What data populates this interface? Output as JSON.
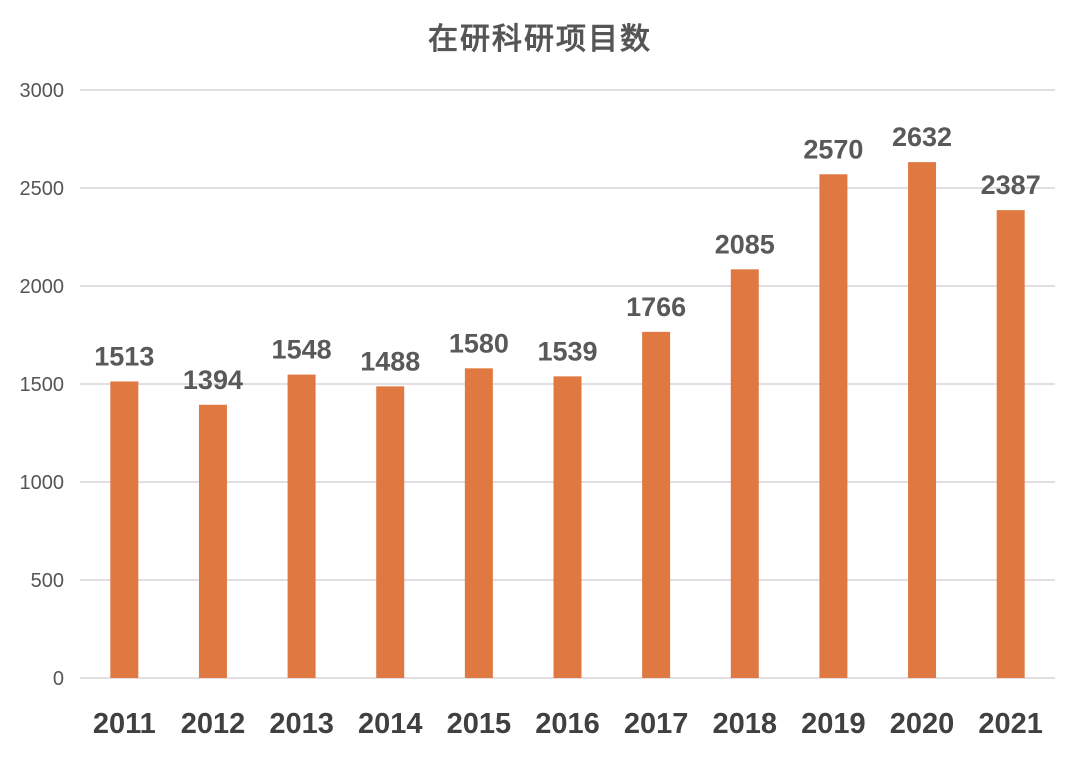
{
  "chart_data": {
    "type": "bar",
    "title": "在研科研项目数",
    "categories": [
      "2011",
      "2012",
      "2013",
      "2014",
      "2015",
      "2016",
      "2017",
      "2018",
      "2019",
      "2020",
      "2021"
    ],
    "values": [
      1513,
      1394,
      1548,
      1488,
      1580,
      1539,
      1766,
      2085,
      2570,
      2632,
      2387
    ],
    "ylim": [
      0,
      3000
    ],
    "yticks": [
      0,
      500,
      1000,
      1500,
      2000,
      2500,
      3000
    ],
    "grid": true,
    "data_labels": true,
    "bar_color": "#e07842",
    "grid_color": "#d9d4d8"
  }
}
